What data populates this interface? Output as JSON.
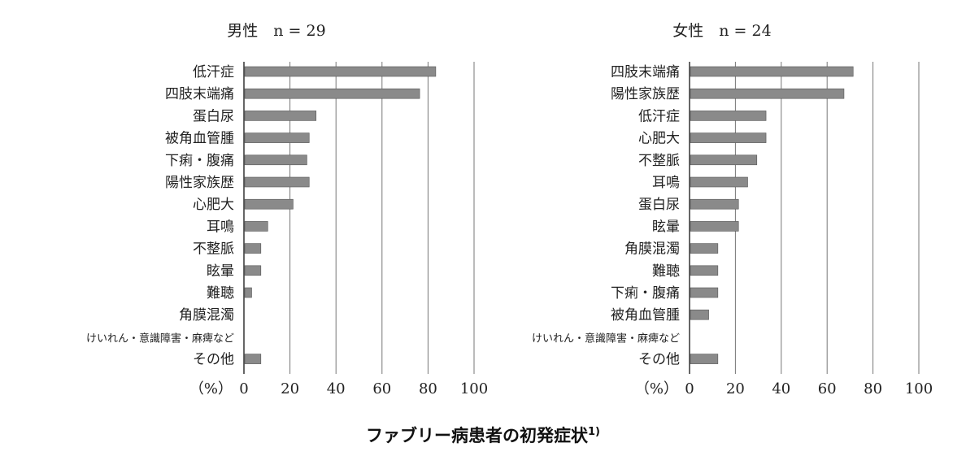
{
  "chart_data": [
    {
      "type": "bar",
      "orientation": "horizontal",
      "title": "男性　n = 29",
      "x_unit_label": "（%）",
      "xlim": [
        0,
        100
      ],
      "x_ticks": [
        0,
        20,
        40,
        60,
        80,
        100
      ],
      "grid": true,
      "bar_color": "#8a8a8a",
      "categories": [
        "低汗症",
        "四肢末端痛",
        "蛋白尿",
        "被角血管腫",
        "下痢・腹痛",
        "陽性家族歴",
        "心肥大",
        "耳鳴",
        "不整脈",
        "眩暈",
        "難聴",
        "角膜混濁",
        "けいれん・意識障害・麻痺など",
        "その他"
      ],
      "values": [
        83,
        76,
        31,
        28,
        27,
        28,
        21,
        10,
        7,
        7,
        3,
        0,
        0,
        7
      ]
    },
    {
      "type": "bar",
      "orientation": "horizontal",
      "title": "女性　n = 24",
      "x_unit_label": "（%）",
      "xlim": [
        0,
        100
      ],
      "x_ticks": [
        0,
        20,
        40,
        60,
        80,
        100
      ],
      "grid": true,
      "bar_color": "#8a8a8a",
      "categories": [
        "四肢末端痛",
        "陽性家族歴",
        "低汗症",
        "心肥大",
        "不整脈",
        "耳鳴",
        "蛋白尿",
        "眩暈",
        "角膜混濁",
        "難聴",
        "下痢・腹痛",
        "被角血管腫",
        "けいれん・意識障害・麻痺など",
        "その他"
      ],
      "values": [
        71,
        67,
        33,
        33,
        29,
        25,
        21,
        21,
        12,
        12,
        12,
        8,
        0,
        12
      ]
    }
  ],
  "caption": {
    "text": "ファブリー病患者の初発症状",
    "sup": "1)"
  }
}
